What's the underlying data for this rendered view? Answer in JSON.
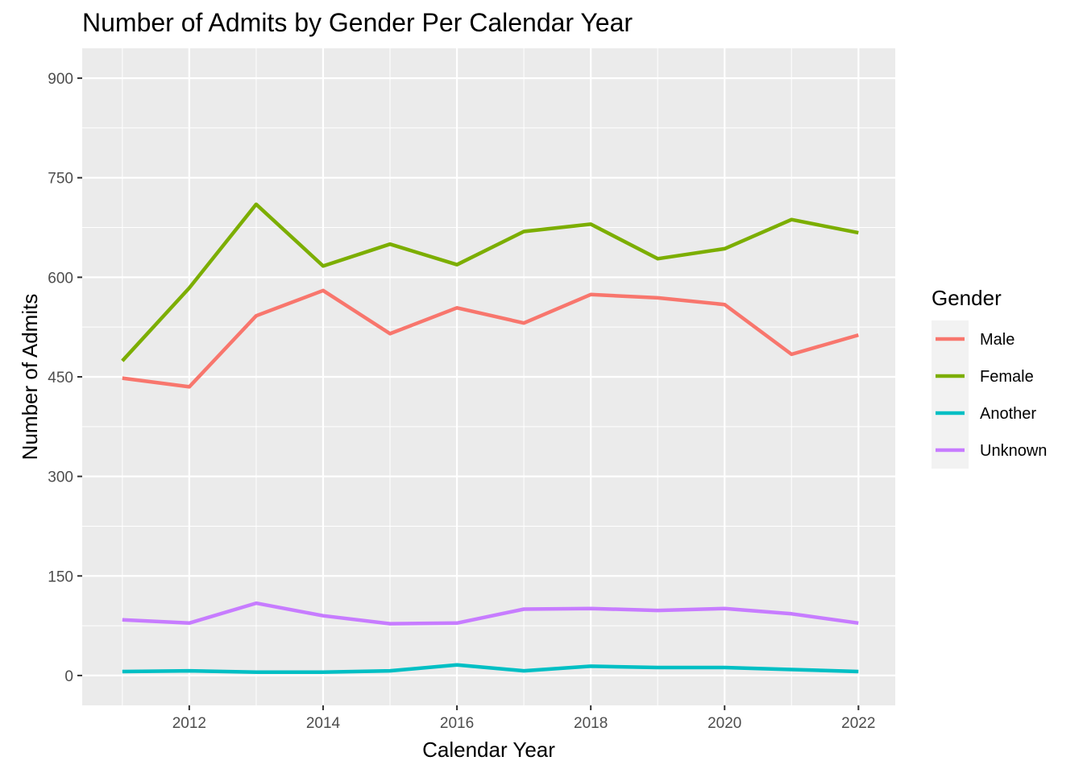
{
  "chart_data": {
    "type": "line",
    "title": "Number of Admits by Gender Per Calendar Year",
    "xlabel": "Calendar Year",
    "ylabel": "Number of Admits",
    "x": [
      2011,
      2012,
      2013,
      2014,
      2015,
      2016,
      2017,
      2018,
      2019,
      2020,
      2021,
      2022
    ],
    "x_ticks": [
      2012,
      2014,
      2016,
      2018,
      2020,
      2022
    ],
    "y_ticks": [
      0,
      150,
      300,
      450,
      600,
      750,
      900
    ],
    "xlim": [
      2010.4,
      2022.55
    ],
    "ylim": [
      -45,
      945
    ],
    "grid": true,
    "legend": {
      "title": "Gender",
      "position": "right"
    },
    "series": [
      {
        "name": "Male",
        "color": "#F8766D",
        "values": [
          448,
          435,
          542,
          580,
          515,
          554,
          531,
          574,
          569,
          559,
          484,
          513
        ]
      },
      {
        "name": "Female",
        "color": "#7CAE00",
        "values": [
          474,
          584,
          710,
          617,
          650,
          619,
          669,
          680,
          628,
          643,
          687,
          667
        ]
      },
      {
        "name": "Another",
        "color": "#00BFC4",
        "values": [
          6,
          7,
          5,
          5,
          7,
          16,
          7,
          14,
          12,
          12,
          9,
          6
        ]
      },
      {
        "name": "Unknown",
        "color": "#C77CFF",
        "values": [
          84,
          79,
          109,
          90,
          78,
          79,
          100,
          101,
          98,
          101,
          93,
          79
        ]
      }
    ]
  }
}
